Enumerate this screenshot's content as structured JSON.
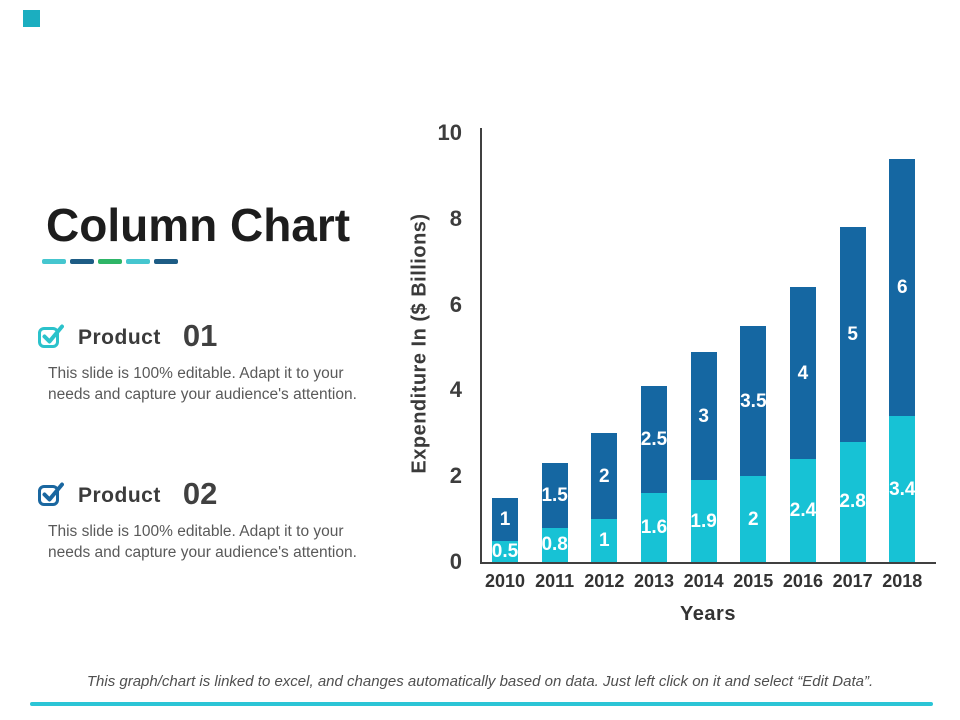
{
  "slide": {
    "title": "Column Chart",
    "footnote": "This graph/chart is linked to excel, and changes automatically based on data. Just left click on it and select “Edit Data”."
  },
  "title_dashes": [
    "#45C6CF",
    "#1D5C85",
    "#2EB567",
    "#45C6CF",
    "#1D5C85"
  ],
  "products": [
    {
      "label": "Product",
      "number": "01",
      "icon_color": "#2BC2CB",
      "body": "This slide is 100% editable. Adapt it to your needs and capture your audience's attention."
    },
    {
      "label": "Product",
      "number": "02",
      "icon_color": "#1A67A0",
      "body": "This slide is 100% editable. Adapt it to your needs and capture your audience's attention."
    }
  ],
  "chart_data": {
    "type": "bar",
    "stacked": true,
    "categories": [
      "2010",
      "2011",
      "2012",
      "2013",
      "2014",
      "2015",
      "2016",
      "2017",
      "2018"
    ],
    "series": [
      {
        "name": "Product 01",
        "color": "#17C2D5",
        "values": [
          0.5,
          0.8,
          1,
          1.6,
          1.9,
          2,
          2.4,
          2.8,
          3.4
        ]
      },
      {
        "name": "Product 02",
        "color": "#1567A2",
        "values": [
          1,
          1.5,
          2,
          2.5,
          3,
          3.5,
          4,
          5,
          6
        ]
      }
    ],
    "totals": [
      1.5,
      2.3,
      3,
      4.1,
      4.9,
      5.5,
      6.4,
      7.8,
      9.4
    ],
    "xlabel": "Years",
    "ylabel": "Expenditure In ($ Billions)",
    "ylim": [
      0,
      10
    ],
    "yticks": [
      0,
      2,
      4,
      6,
      8,
      10
    ],
    "grid": false,
    "legend": "none",
    "value_labels": "inside, white, bold"
  },
  "accents": {
    "corner_square": "#1BAEC0",
    "bottom_line": "#2BC5D6",
    "axis_color": "#404040"
  }
}
